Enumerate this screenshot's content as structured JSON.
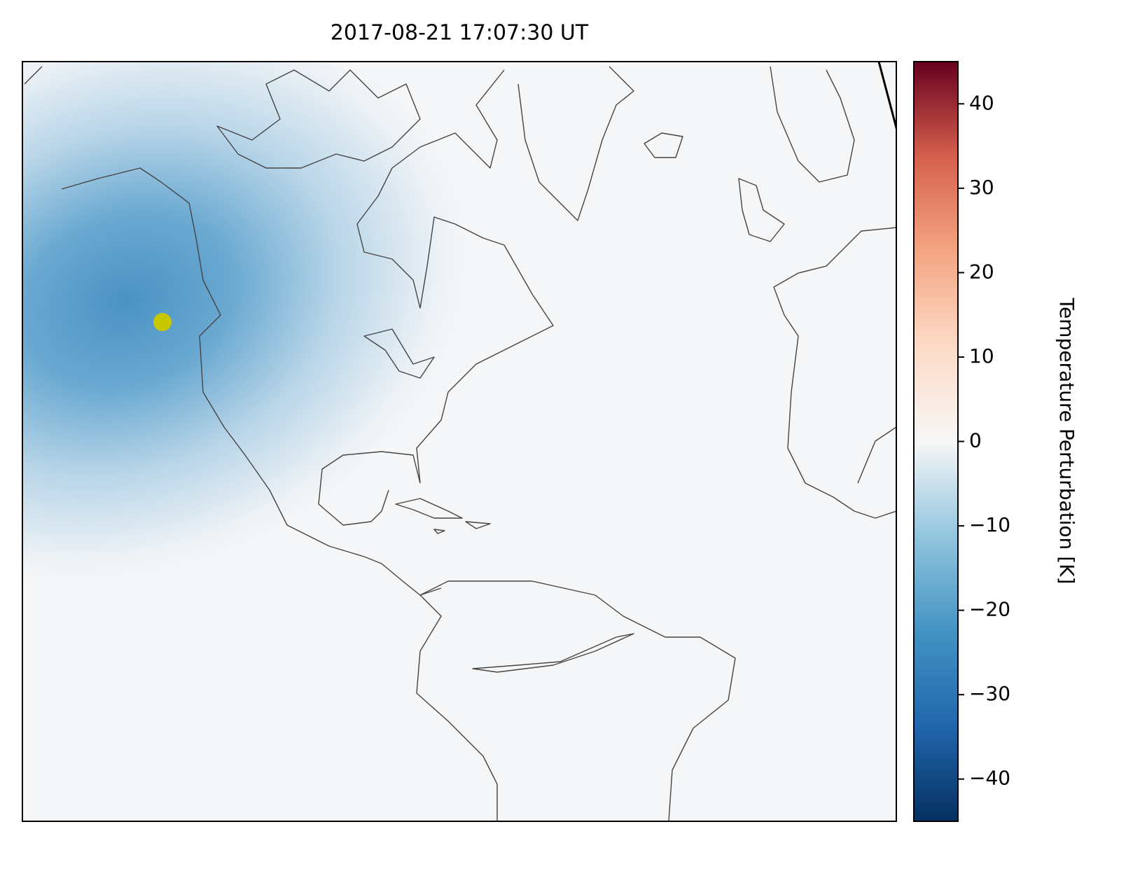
{
  "chart_data": {
    "type": "map",
    "title": "2017-08-21 17:07:30 UT",
    "colorbar": {
      "label": "Temperature Perturbation [K]",
      "lim": [
        -45,
        45
      ],
      "ticks": [
        {
          "value": -40,
          "label": "−40"
        },
        {
          "value": -30,
          "label": "−30"
        },
        {
          "value": -20,
          "label": "−20"
        },
        {
          "value": -10,
          "label": "−10"
        },
        0,
        10,
        20,
        30,
        40
      ]
    }
  }
}
